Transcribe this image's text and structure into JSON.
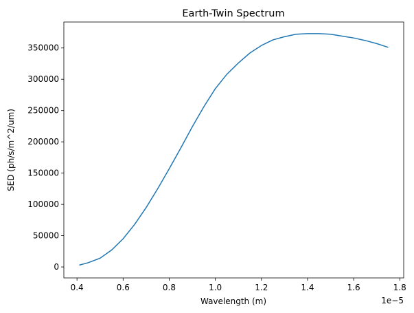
{
  "chart_data": {
    "type": "line",
    "title": "Earth-Twin Spectrum",
    "x_label": "Wavelength (m)",
    "y_label": "SED (ph/s/m^2/um)",
    "x_offset_text": "1e−5",
    "x": [
      0.41,
      0.45,
      0.5,
      0.55,
      0.6,
      0.65,
      0.7,
      0.75,
      0.8,
      0.85,
      0.9,
      0.95,
      1.0,
      1.05,
      1.1,
      1.15,
      1.2,
      1.25,
      1.3,
      1.35,
      1.4,
      1.45,
      1.5,
      1.55,
      1.6,
      1.65,
      1.7,
      1.75
    ],
    "series": [
      {
        "name": "SED",
        "color": "#1f77b4",
        "values": [
          3000,
          7000,
          14000,
          27000,
          45000,
          68000,
          95000,
          125000,
          157000,
          190000,
          224000,
          256000,
          285000,
          308000,
          326000,
          342000,
          354000,
          363000,
          368000,
          372000,
          373000,
          373000,
          372000,
          369000,
          366000,
          362000,
          357000,
          351000
        ]
      }
    ],
    "xlim": [
      0.343,
      1.817
    ],
    "ylim": [
      -17500,
      391500
    ],
    "xticks": [
      0.4,
      0.6,
      0.8,
      1.0,
      1.2,
      1.4,
      1.6,
      1.8
    ],
    "yticks": [
      0,
      50000,
      100000,
      150000,
      200000,
      250000,
      300000,
      350000
    ],
    "grid": false
  }
}
